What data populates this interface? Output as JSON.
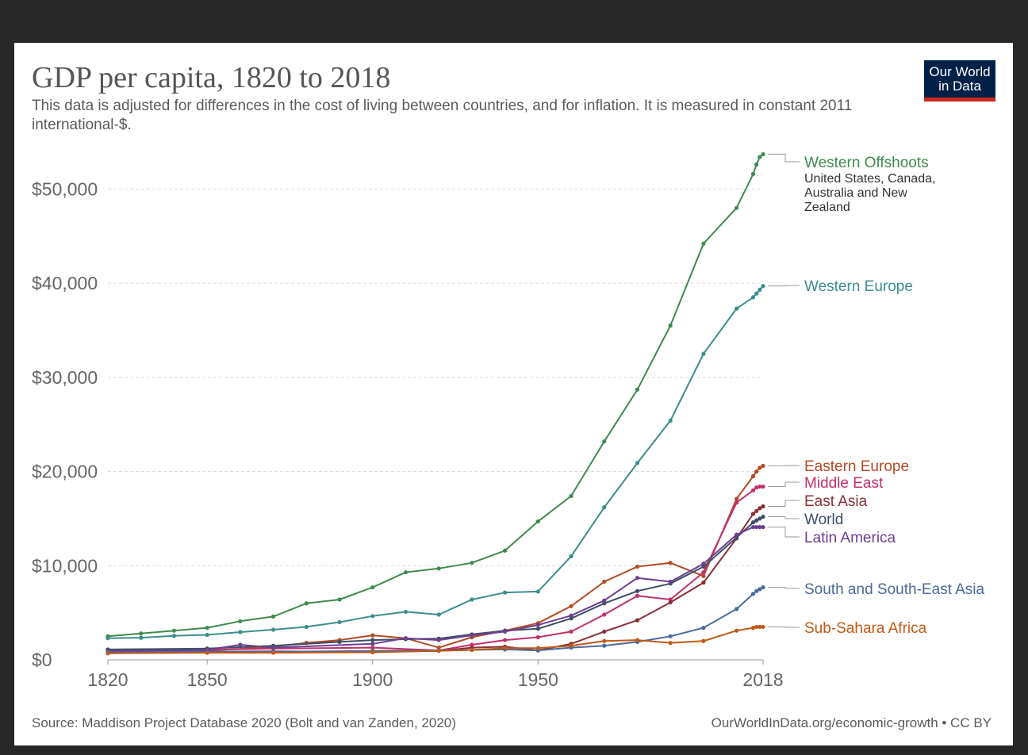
{
  "header": {
    "title": "GDP per capita, 1820 to 2018",
    "subtitle": "This data is adjusted for differences in the cost of living between countries, and for inflation. It is measured in constant 2011 international-$.",
    "logo_line1": "Our World",
    "logo_line2": "in Data"
  },
  "footer": {
    "source": "Source: Maddison Project Database 2020 (Bolt and van Zanden, 2020)",
    "credit": "OurWorldInData.org/economic-growth • CC BY"
  },
  "colors": {
    "logo_bg": "#002147",
    "logo_accent": "#ce261e"
  },
  "chart_data": {
    "type": "line",
    "title": "GDP per capita, 1820 to 2018",
    "xlabel": "",
    "ylabel": "",
    "xlim": [
      1820,
      2018
    ],
    "ylim": [
      0,
      55000
    ],
    "yticks": [
      0,
      10000,
      20000,
      30000,
      40000,
      50000
    ],
    "ytick_labels": [
      "$0",
      "$10,000",
      "$20,000",
      "$30,000",
      "$40,000",
      "$50,000"
    ],
    "xticks": [
      1820,
      1850,
      1900,
      1950,
      2018
    ],
    "xtick_labels": [
      "1820",
      "1850",
      "1900",
      "1950",
      "2018"
    ],
    "grid": true,
    "series": [
      {
        "name": "Western Offshoots",
        "sublabel": "United States, Canada, Australia and New Zealand",
        "color": "#3f8a4e",
        "x": [
          1820,
          1830,
          1840,
          1850,
          1860,
          1870,
          1880,
          1890,
          1900,
          1910,
          1920,
          1930,
          1940,
          1950,
          1960,
          1970,
          1980,
          1990,
          2000,
          2010,
          2015,
          2016,
          2017,
          2018
        ],
        "y": [
          2500,
          2800,
          3100,
          3400,
          4100,
          4600,
          6000,
          6400,
          7700,
          9300,
          9700,
          10300,
          11600,
          14700,
          17400,
          23200,
          28700,
          35500,
          44200,
          48000,
          51600,
          52600,
          53400,
          53700
        ]
      },
      {
        "name": "Western Europe",
        "color": "#3c8e8c",
        "x": [
          1820,
          1830,
          1840,
          1850,
          1860,
          1870,
          1880,
          1890,
          1900,
          1910,
          1920,
          1930,
          1940,
          1950,
          1960,
          1970,
          1980,
          1990,
          2000,
          2010,
          2015,
          2016,
          2017,
          2018
        ],
        "y": [
          2300,
          2350,
          2550,
          2650,
          2950,
          3200,
          3500,
          4000,
          4650,
          5100,
          4800,
          6400,
          7150,
          7250,
          11000,
          16200,
          20900,
          25400,
          32500,
          37300,
          38500,
          38900,
          39300,
          39700
        ]
      },
      {
        "name": "Eastern Europe",
        "color": "#b34b24",
        "x": [
          1820,
          1850,
          1870,
          1880,
          1890,
          1900,
          1910,
          1920,
          1930,
          1940,
          1950,
          1960,
          1970,
          1980,
          1990,
          2000,
          2010,
          2015,
          2016,
          2017,
          2018
        ],
        "y": [
          800,
          950,
          1400,
          1800,
          2100,
          2600,
          2300,
          1300,
          2400,
          3100,
          3900,
          5700,
          8300,
          9900,
          10300,
          8900,
          17100,
          19500,
          20000,
          20400,
          20600
        ]
      },
      {
        "name": "Middle East",
        "color": "#c2306b",
        "x": [
          1820,
          1850,
          1870,
          1900,
          1920,
          1930,
          1940,
          1950,
          1960,
          1970,
          1980,
          1990,
          2000,
          2010,
          2015,
          2016,
          2017,
          2018
        ],
        "y": [
          1000,
          1050,
          1200,
          1300,
          1000,
          1600,
          2100,
          2400,
          3000,
          4800,
          6800,
          6400,
          9300,
          16700,
          18000,
          18300,
          18400,
          18400
        ]
      },
      {
        "name": "East Asia",
        "color": "#883039",
        "x": [
          1820,
          1850,
          1870,
          1900,
          1920,
          1930,
          1940,
          1950,
          1960,
          1970,
          1980,
          1990,
          2000,
          2010,
          2015,
          2016,
          2017,
          2018
        ],
        "y": [
          700,
          850,
          900,
          850,
          950,
          1300,
          1400,
          1000,
          1700,
          3000,
          4200,
          6100,
          8200,
          12900,
          15500,
          15800,
          16100,
          16300
        ]
      },
      {
        "name": "World",
        "color": "#3c4e66",
        "x": [
          1820,
          1850,
          1870,
          1890,
          1900,
          1910,
          1920,
          1930,
          1940,
          1950,
          1960,
          1970,
          1980,
          1990,
          2000,
          2010,
          2015,
          2016,
          2017,
          2018
        ],
        "y": [
          1100,
          1200,
          1500,
          1900,
          2100,
          2200,
          2250,
          2700,
          3100,
          3300,
          4400,
          6000,
          7300,
          8100,
          9900,
          13000,
          14600,
          14800,
          15000,
          15200
        ]
      },
      {
        "name": "Latin America",
        "color": "#6d3e91",
        "x": [
          1820,
          1850,
          1860,
          1870,
          1900,
          1910,
          1920,
          1930,
          1940,
          1950,
          1960,
          1970,
          1980,
          1990,
          2000,
          2010,
          2015,
          2016,
          2017,
          2018
        ],
        "y": [
          900,
          1050,
          1600,
          1300,
          1700,
          2300,
          2100,
          2600,
          3000,
          3700,
          4700,
          6300,
          8700,
          8300,
          10200,
          13300,
          14100,
          14100,
          14100,
          14100
        ]
      },
      {
        "name": "South and South-East Asia",
        "color": "#4c6a9c",
        "x": [
          1820,
          1850,
          1870,
          1900,
          1920,
          1930,
          1940,
          1950,
          1960,
          1970,
          1980,
          1990,
          2000,
          2010,
          2015,
          2016,
          2017,
          2018
        ],
        "y": [
          800,
          850,
          850,
          950,
          1000,
          1050,
          1100,
          1000,
          1300,
          1500,
          1900,
          2500,
          3400,
          5400,
          7000,
          7300,
          7500,
          7700
        ]
      },
      {
        "name": "Sub-Sahara Africa",
        "color": "#c05917",
        "x": [
          1820,
          1850,
          1870,
          1900,
          1920,
          1930,
          1940,
          1950,
          1960,
          1970,
          1980,
          1990,
          2000,
          2010,
          2015,
          2016,
          2017,
          2018
        ],
        "y": [
          700,
          750,
          750,
          800,
          950,
          1050,
          1250,
          1250,
          1500,
          2000,
          2100,
          1800,
          2000,
          3100,
          3400,
          3500,
          3500,
          3500
        ]
      }
    ]
  }
}
